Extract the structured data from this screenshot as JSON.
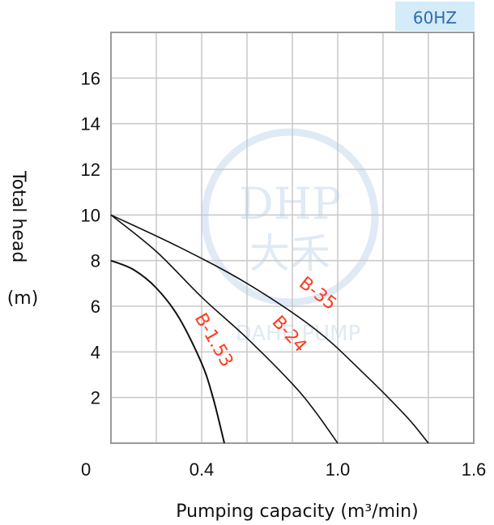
{
  "badge": "60HZ",
  "watermark": {
    "brand_top": "DHP",
    "brand_mid": "大禾",
    "brand_bottom": "DAHE PUMP"
  },
  "colors": {
    "series_label": "#ff3b1f",
    "badge_bg": "#d4ebf9",
    "badge_text": "#2a6db5",
    "grid": "#c8c8c8",
    "watermark": "#c5d9ee"
  },
  "chart_data": {
    "type": "line",
    "xlabel": "Pumping capacity (m³/min)",
    "ylabel_line1": "Total head",
    "ylabel_line2": "(m)",
    "xlim": [
      0,
      1.6
    ],
    "ylim": [
      0,
      18
    ],
    "x_tick_values": [
      0,
      0.4,
      1.0,
      1.6
    ],
    "x_tick_labels": [
      "0",
      "0.4",
      "1.0",
      "1.6"
    ],
    "y_tick_values": [
      2,
      4,
      6,
      8,
      10,
      12,
      14,
      16
    ],
    "y_tick_labels": [
      "2",
      "4",
      "6",
      "8",
      "10",
      "12",
      "14",
      "16"
    ],
    "grid": true,
    "series": [
      {
        "name": "B-1.53",
        "x": [
          0.0,
          0.1,
          0.2,
          0.3,
          0.4,
          0.45,
          0.5
        ],
        "y": [
          8.0,
          7.6,
          6.8,
          5.5,
          3.5,
          2.0,
          0.0
        ]
      },
      {
        "name": "B-24",
        "x": [
          0.0,
          0.2,
          0.4,
          0.6,
          0.8,
          0.9,
          1.0
        ],
        "y": [
          10.0,
          8.4,
          6.4,
          4.6,
          2.6,
          1.4,
          0.0
        ]
      },
      {
        "name": "B-35",
        "x": [
          0.0,
          0.3,
          0.6,
          0.9,
          1.1,
          1.3,
          1.4
        ],
        "y": [
          10.0,
          8.6,
          7.0,
          5.0,
          3.2,
          1.2,
          0.0
        ]
      }
    ]
  }
}
